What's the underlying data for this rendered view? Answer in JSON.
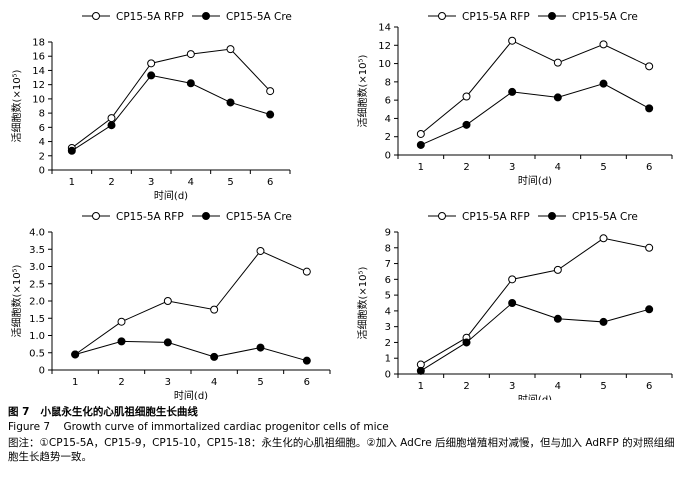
{
  "chart_data": [
    {
      "type": "line",
      "x": [
        1,
        2,
        3,
        4,
        5,
        6
      ],
      "xlabel": "时间(d)",
      "ylabel": "活细胞数(×10⁵)",
      "ylim": [
        0,
        18
      ],
      "yticks": [
        0,
        2,
        4,
        6,
        8,
        10,
        12,
        14,
        16,
        18
      ],
      "ytick_labels": [
        "0",
        "2",
        "4",
        "6",
        "8",
        "10",
        "12",
        "14",
        "16",
        "18"
      ],
      "legend_position": "top",
      "grid": false,
      "series": [
        {
          "name": "CP15-5A RFP",
          "marker": "open-circle",
          "values": [
            3.1,
            7.3,
            15.0,
            16.3,
            17.0,
            11.1
          ]
        },
        {
          "name": "CP15-5A Cre",
          "marker": "filled-circle",
          "values": [
            2.7,
            6.3,
            13.3,
            12.2,
            9.5,
            7.8
          ]
        }
      ]
    },
    {
      "type": "line",
      "x": [
        1,
        2,
        3,
        4,
        5,
        6
      ],
      "xlabel": "时间(d)",
      "ylabel": "活细胞数(×10⁵)",
      "ylim": [
        0,
        14
      ],
      "yticks": [
        0,
        2,
        4,
        6,
        8,
        10,
        12,
        14
      ],
      "ytick_labels": [
        "0",
        "2",
        "4",
        "6",
        "8",
        "10",
        "12",
        "14"
      ],
      "legend_position": "top",
      "grid": false,
      "series": [
        {
          "name": "CP15-5A RFP",
          "marker": "open-circle",
          "values": [
            2.3,
            6.4,
            12.5,
            10.1,
            12.1,
            9.7
          ]
        },
        {
          "name": "CP15-5A Cre",
          "marker": "filled-circle",
          "values": [
            1.1,
            3.3,
            6.9,
            6.3,
            7.8,
            5.1
          ]
        }
      ]
    },
    {
      "type": "line",
      "x": [
        1,
        2,
        3,
        4,
        5,
        6
      ],
      "xlabel": "时间(d)",
      "ylabel": "活细胞数(×10⁵)",
      "ylim": [
        0,
        4.0
      ],
      "yticks": [
        0,
        0.5,
        1.0,
        1.5,
        2.0,
        2.5,
        3.0,
        3.5,
        4.0
      ],
      "ytick_labels": [
        "0",
        "0.5",
        "1.0",
        "1.5",
        "2.0",
        "2.5",
        "3.0",
        "3.5",
        "4.0"
      ],
      "legend_position": "top",
      "grid": false,
      "series": [
        {
          "name": "CP15-5A RFP",
          "marker": "open-circle",
          "values": [
            0.45,
            1.4,
            2.0,
            1.75,
            3.45,
            2.85
          ]
        },
        {
          "name": "CP15-5A Cre",
          "marker": "filled-circle",
          "values": [
            0.45,
            0.83,
            0.8,
            0.38,
            0.65,
            0.27
          ]
        }
      ]
    },
    {
      "type": "line",
      "x": [
        1,
        2,
        3,
        4,
        5,
        6
      ],
      "xlabel": "时间(d)",
      "ylabel": "活细胞数(×10⁵)",
      "ylim": [
        0,
        9
      ],
      "yticks": [
        0,
        1,
        2,
        3,
        4,
        5,
        6,
        7,
        8,
        9
      ],
      "ytick_labels": [
        "0",
        "1",
        "2",
        "3",
        "4",
        "5",
        "6",
        "7",
        "8",
        "9"
      ],
      "legend_position": "top",
      "grid": false,
      "series": [
        {
          "name": "CP15-5A RFP",
          "marker": "open-circle",
          "values": [
            0.6,
            2.3,
            6.0,
            6.6,
            8.6,
            8.0
          ]
        },
        {
          "name": "CP15-5A Cre",
          "marker": "filled-circle",
          "values": [
            0.2,
            2.0,
            4.5,
            3.5,
            3.3,
            4.1
          ]
        }
      ]
    }
  ],
  "caption": {
    "figure_label": "图 7",
    "title_zh": "小鼠永生化的心肌祖细胞生长曲线",
    "figure_label_en": "Figure 7",
    "title_en": "Growth curve of immortalized cardiac progenitor cells of mice",
    "note": "图注：①CP15-5A，CP15-9，CP15-10，CP15-18：永生化的心肌祖细胞。②加入 AdCre 后细胞增殖相对减慢，但与加入 AdRFP 的对照组细胞生长趋势一致。"
  }
}
